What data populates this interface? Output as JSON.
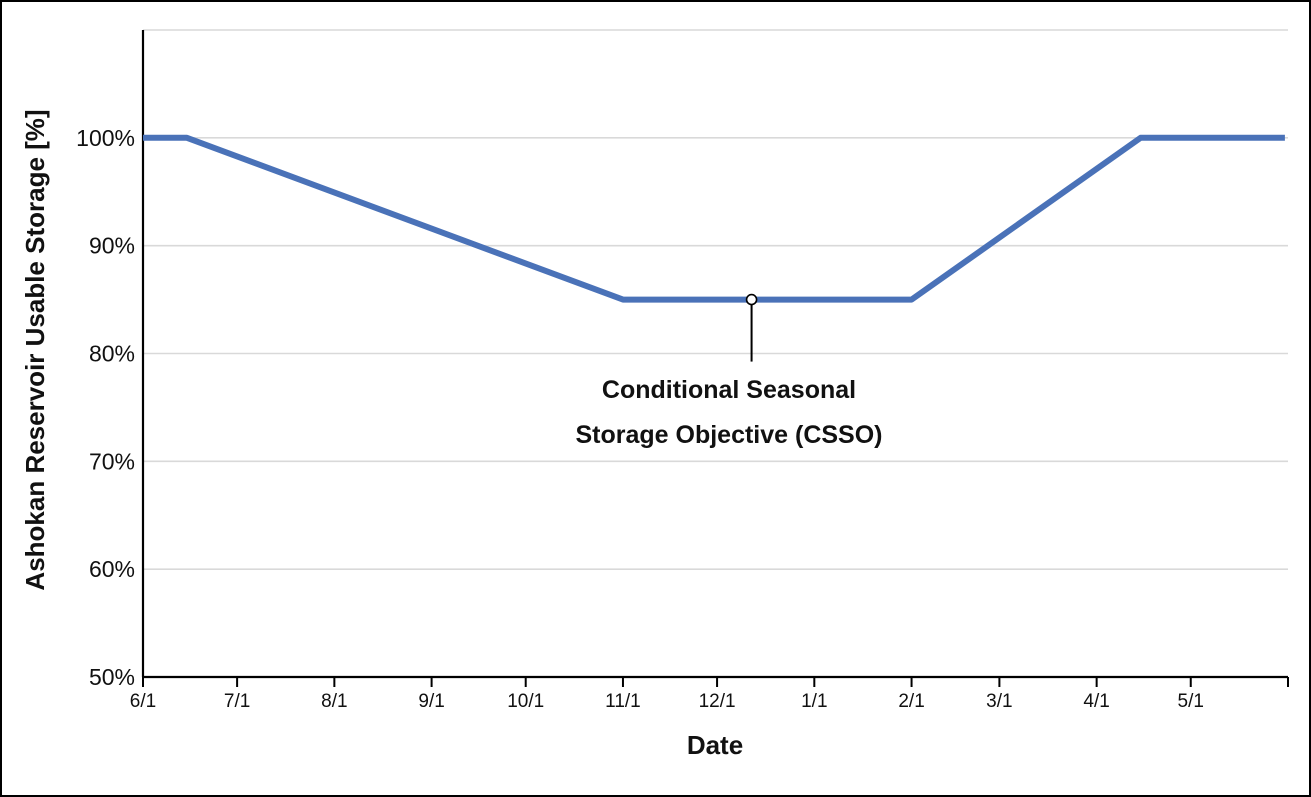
{
  "chart_data": {
    "type": "line",
    "title": "",
    "xlabel": "Date",
    "ylabel": "Ashokan Reservoir Usable Storage [%]",
    "x_tick_labels": [
      "6/1",
      "7/1",
      "8/1",
      "9/1",
      "10/1",
      "11/1",
      "12/1",
      "1/1",
      "2/1",
      "3/1",
      "4/1",
      "5/1"
    ],
    "y_tick_labels": [
      "50%",
      "60%",
      "70%",
      "80%",
      "90%",
      "100%"
    ],
    "y_ticks": [
      50,
      60,
      70,
      80,
      90,
      100
    ],
    "ylim": [
      50,
      110
    ],
    "grid": "horizontal",
    "series": [
      {
        "color": "#4a72b8",
        "points": [
          {
            "x": "6/1",
            "y": 100
          },
          {
            "x": "6/15",
            "y": 100
          },
          {
            "x": "11/1",
            "y": 85
          },
          {
            "x": "2/1",
            "y": 85
          },
          {
            "x": "4/15",
            "y": 100
          },
          {
            "x": "5/31",
            "y": 100
          }
        ]
      }
    ],
    "annotation": {
      "lines": [
        "Conditional Seasonal",
        "Storage Objective (CSSO)"
      ],
      "x": "12/12",
      "y": 85
    }
  }
}
